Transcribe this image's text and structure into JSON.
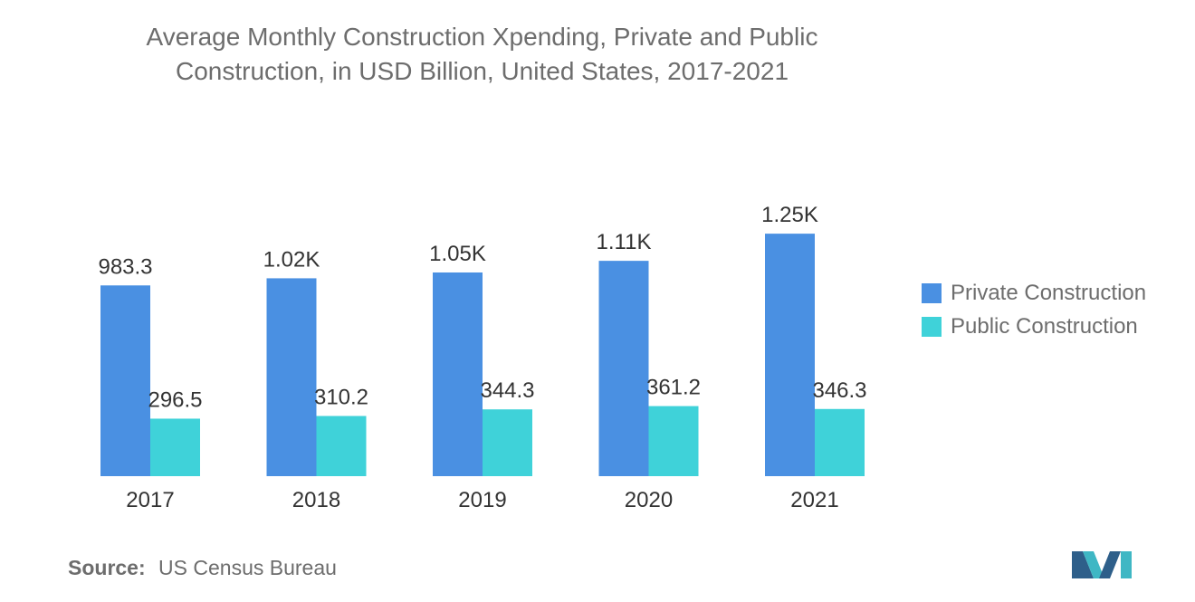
{
  "title_lines": [
    "Average Monthly Construction Xpending, Private and Public",
    "Construction, in USD Billion, United States, 2017-2021"
  ],
  "chart_data": {
    "type": "bar",
    "title": "Average Monthly Construction Xpending, Private and Public Construction, in USD Billion, United States, 2017-2021",
    "categories": [
      "2017",
      "2018",
      "2019",
      "2020",
      "2021"
    ],
    "series": [
      {
        "name": "Private Construction",
        "color": "#4a90e2",
        "values": [
          983.3,
          1020,
          1050,
          1110,
          1250
        ],
        "labels": [
          "983.3",
          "1.02K",
          "1.05K",
          "1.11K",
          "1.25K"
        ]
      },
      {
        "name": "Public Construction",
        "color": "#3fd2d9",
        "values": [
          296.5,
          310.2,
          344.3,
          361.2,
          346.3
        ],
        "labels": [
          "296.5",
          "310.2",
          "344.3",
          "361.2",
          "346.3"
        ]
      }
    ],
    "ylim": [
      0,
      1400
    ],
    "grid": false,
    "legend": "right"
  },
  "source": {
    "label": "Source:",
    "text": "US Census Bureau"
  }
}
